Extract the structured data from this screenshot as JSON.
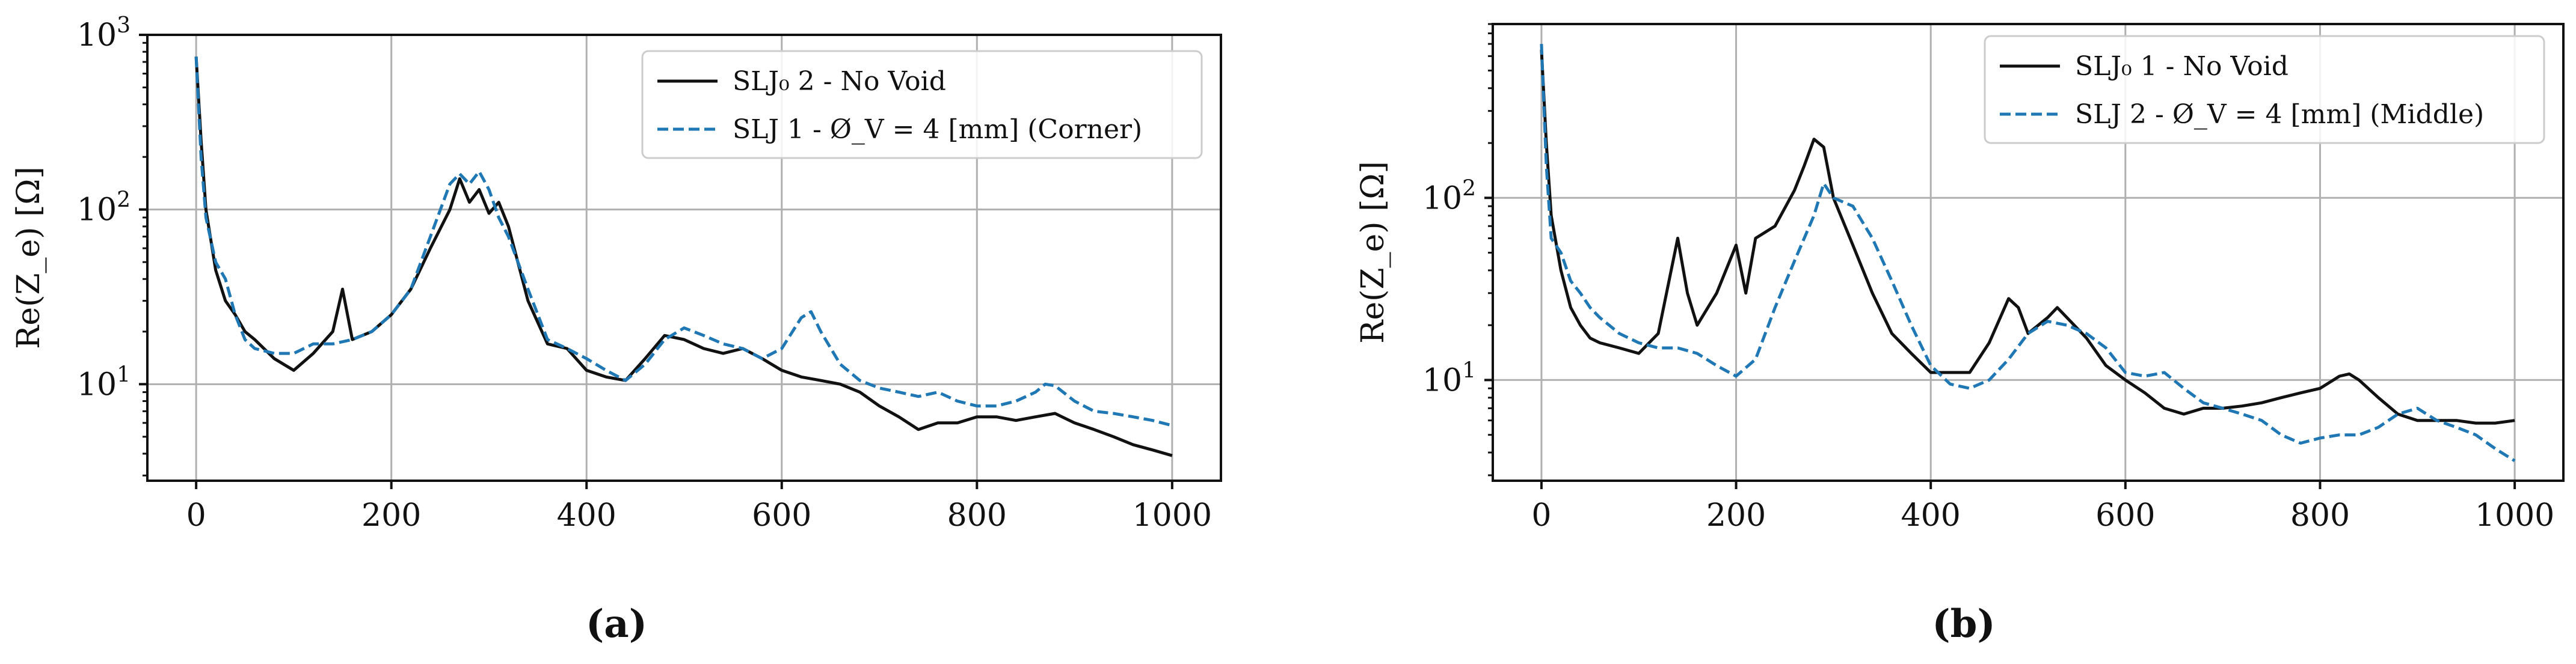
{
  "chart_data": [
    {
      "type": "line",
      "caption": "(a)",
      "ylabel": "Re(Z_e) [Ω]",
      "xlabel": "",
      "xlim": [
        -50,
        1050
      ],
      "ylim": [
        2.8,
        1000
      ],
      "yscale": "log",
      "grid": true,
      "legend_position": "top-right",
      "xticks": [
        0,
        200,
        400,
        600,
        800,
        1000
      ],
      "xtick_labels": [
        "0",
        "200",
        "400",
        "600",
        "800",
        "1000"
      ],
      "yticks": [
        10,
        100,
        1000
      ],
      "ytick_labels": [
        "10¹",
        "10²",
        "10³"
      ],
      "series": [
        {
          "name": "SLJ₀ 2 - No Void",
          "color": "#111111",
          "style": "solid",
          "x": [
            0,
            5,
            10,
            20,
            30,
            40,
            50,
            60,
            80,
            100,
            120,
            140,
            150,
            160,
            180,
            200,
            220,
            240,
            260,
            270,
            280,
            290,
            300,
            310,
            320,
            340,
            360,
            380,
            400,
            420,
            440,
            460,
            480,
            500,
            520,
            540,
            560,
            580,
            600,
            620,
            640,
            660,
            680,
            700,
            720,
            740,
            760,
            780,
            800,
            820,
            840,
            860,
            880,
            900,
            920,
            940,
            960,
            980,
            1000
          ],
          "y": [
            750,
            250,
            100,
            45,
            30,
            25,
            20,
            18,
            14,
            12,
            15,
            20,
            35,
            18,
            20,
            25,
            35,
            60,
            100,
            150,
            110,
            130,
            95,
            110,
            80,
            30,
            17,
            16,
            12,
            11,
            10.5,
            14,
            19,
            18,
            16,
            15,
            16,
            14,
            12,
            11,
            10.5,
            10,
            9,
            7.5,
            6.5,
            5.5,
            6,
            6,
            6.5,
            6.5,
            6.2,
            6.5,
            6.8,
            6,
            5.5,
            5,
            4.5,
            4.2,
            3.9
          ]
        },
        {
          "name": "SLJ 1 - Ø_V = 4 [mm] (Corner)",
          "color": "#1f77b4",
          "style": "dashed",
          "x": [
            0,
            5,
            10,
            20,
            30,
            40,
            50,
            60,
            80,
            100,
            120,
            140,
            160,
            180,
            200,
            220,
            240,
            260,
            270,
            280,
            290,
            300,
            310,
            320,
            340,
            360,
            380,
            400,
            420,
            440,
            460,
            480,
            500,
            520,
            540,
            560,
            580,
            600,
            620,
            630,
            640,
            660,
            680,
            700,
            720,
            740,
            760,
            780,
            800,
            820,
            840,
            860,
            870,
            880,
            900,
            920,
            940,
            960,
            980,
            1000
          ],
          "y": [
            750,
            200,
            90,
            50,
            40,
            25,
            18,
            16,
            15,
            15,
            17,
            17,
            18,
            20,
            25,
            35,
            70,
            140,
            160,
            140,
            165,
            130,
            90,
            70,
            35,
            18,
            16,
            14,
            12,
            10.5,
            13,
            18,
            21,
            19,
            17,
            16,
            14,
            16,
            24,
            26,
            20,
            13,
            10.5,
            9.5,
            9,
            8.5,
            9,
            8,
            7.5,
            7.5,
            8,
            9,
            10,
            9.8,
            8,
            7,
            6.8,
            6.5,
            6.2,
            5.8
          ]
        }
      ]
    },
    {
      "type": "line",
      "caption": "(b)",
      "ylabel": "Re(Z_e) [Ω]",
      "xlabel": "",
      "xlim": [
        -50,
        1050
      ],
      "ylim": [
        2.8,
        900
      ],
      "yscale": "log",
      "grid": true,
      "legend_position": "top-right",
      "xticks": [
        0,
        200,
        400,
        600,
        800,
        1000
      ],
      "xtick_labels": [
        "0",
        "200",
        "400",
        "600",
        "800",
        "1000"
      ],
      "yticks": [
        10,
        100
      ],
      "ytick_labels": [
        "10¹",
        "10²"
      ],
      "series": [
        {
          "name": "SLJ₀ 1 - No Void",
          "color": "#111111",
          "style": "solid",
          "x": [
            0,
            5,
            10,
            20,
            30,
            40,
            50,
            60,
            80,
            100,
            120,
            140,
            150,
            160,
            180,
            200,
            210,
            220,
            240,
            260,
            270,
            280,
            290,
            300,
            320,
            340,
            360,
            380,
            400,
            420,
            440,
            460,
            480,
            490,
            500,
            520,
            530,
            540,
            560,
            580,
            600,
            620,
            640,
            660,
            680,
            700,
            720,
            740,
            760,
            780,
            800,
            820,
            830,
            840,
            860,
            880,
            900,
            920,
            940,
            960,
            980,
            1000
          ],
          "y": [
            650,
            200,
            80,
            40,
            25,
            20,
            17,
            16,
            15,
            14,
            18,
            60,
            30,
            20,
            30,
            55,
            30,
            60,
            70,
            110,
            150,
            210,
            190,
            100,
            55,
            30,
            18,
            14,
            11,
            11,
            11,
            16,
            28,
            25,
            18,
            22,
            25,
            22,
            17,
            12,
            10,
            8.5,
            7,
            6.5,
            7,
            7,
            7.2,
            7.5,
            8,
            8.5,
            9,
            10.5,
            10.8,
            10,
            8,
            6.5,
            6,
            6,
            6,
            5.8,
            5.8,
            6
          ]
        },
        {
          "name": "SLJ 2 - Ø_V = 4 [mm] (Middle)",
          "color": "#1f77b4",
          "style": "dashed",
          "x": [
            0,
            5,
            10,
            20,
            30,
            40,
            50,
            60,
            80,
            100,
            120,
            140,
            160,
            180,
            200,
            220,
            240,
            260,
            280,
            290,
            300,
            320,
            340,
            360,
            380,
            400,
            420,
            440,
            460,
            480,
            500,
            520,
            540,
            560,
            580,
            600,
            620,
            640,
            660,
            680,
            700,
            720,
            740,
            760,
            780,
            800,
            820,
            840,
            860,
            880,
            900,
            920,
            940,
            960,
            980,
            1000
          ],
          "y": [
            700,
            150,
            60,
            50,
            35,
            30,
            25,
            22,
            18,
            16,
            15,
            15,
            14,
            12,
            10.5,
            13,
            25,
            45,
            80,
            120,
            100,
            90,
            60,
            35,
            20,
            12,
            9.5,
            9,
            10,
            13,
            18,
            21,
            20,
            18,
            15,
            11,
            10.5,
            11,
            9,
            7.5,
            7,
            6.5,
            6,
            5,
            4.5,
            4.8,
            5,
            5,
            5.5,
            6.5,
            7,
            6,
            5.5,
            5,
            4.2,
            3.6
          ]
        }
      ]
    }
  ]
}
